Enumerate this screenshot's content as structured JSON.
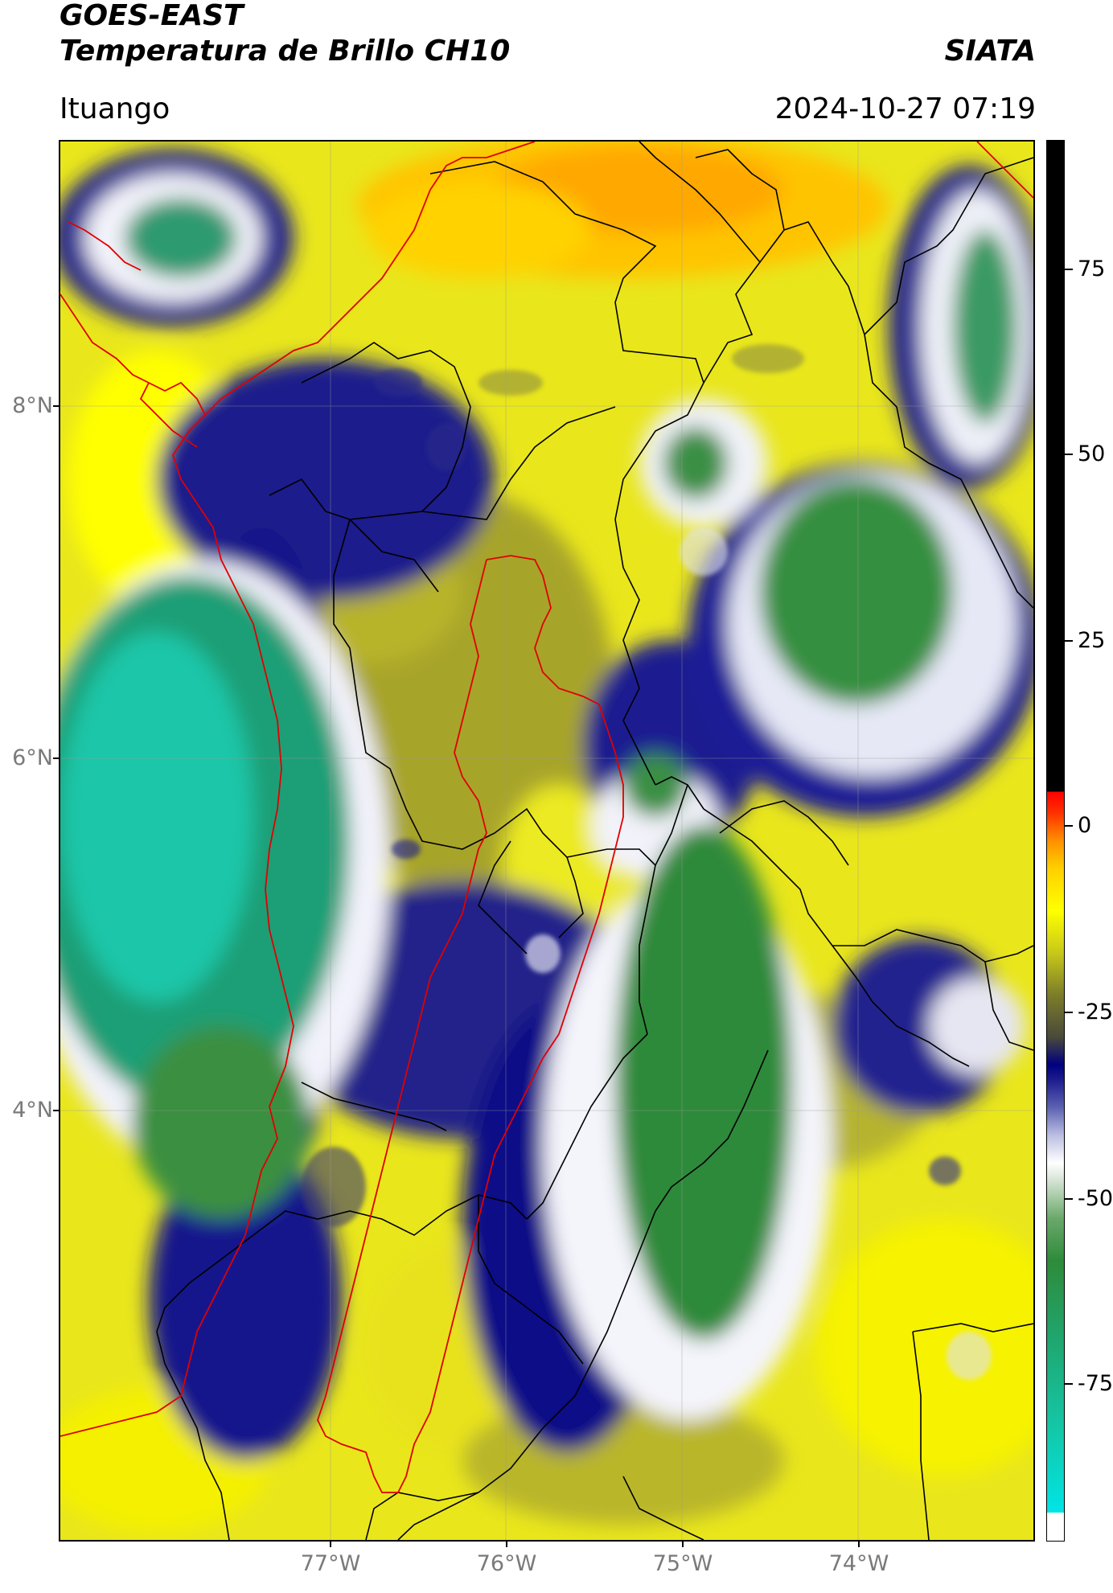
{
  "header": {
    "satellite": "GOES-EAST",
    "product": "Temperatura de Brillo CH10",
    "agency": "SIATA",
    "location": "Ituango",
    "datetime": "2024-10-27 07:19"
  },
  "map": {
    "lat_labels": [
      "8°N",
      "6°N",
      "4°N"
    ],
    "lon_labels": [
      "77°W",
      "76°W",
      "75°W",
      "74°W"
    ],
    "boundary_colors": {
      "coast_and_basin": "#e00000",
      "departments": "#000000"
    }
  },
  "colorbar": {
    "ticks": [
      "75",
      "50",
      "25",
      "0",
      "-25",
      "-50",
      "-75"
    ],
    "colors": {
      "warm": "#000000",
      "hot": "#ff0000",
      "mild": "#ffff00",
      "olive": "#7d7d2a",
      "cold": "#000080",
      "colder": "#ffffff",
      "coldest": "#2e8b3a",
      "extreme": "#00e5e5"
    }
  }
}
